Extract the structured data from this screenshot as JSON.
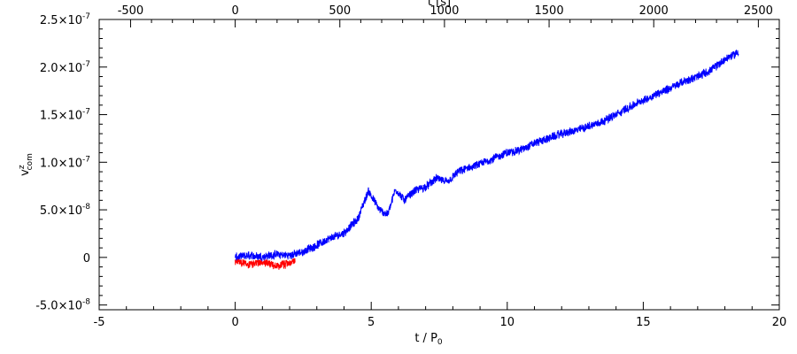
{
  "chart_data": {
    "type": "line",
    "xlabel": "t / P",
    "xlabel_sub": "0",
    "ylabel": "v",
    "ylabel_sup": "z",
    "ylabel_sub": "com",
    "top_axis_label": "t [s]",
    "xlim": [
      -5,
      20
    ],
    "ylim": [
      -5.5e-08,
      2.5e-07
    ],
    "bottom_ticks": [
      "-5",
      "0",
      "5",
      "10",
      "15",
      "20"
    ],
    "bottom_tick_values": [
      -5,
      0,
      5,
      10,
      15,
      20
    ],
    "top_ticks": [
      "-500",
      "0",
      "500",
      "1000",
      "1500",
      "2000",
      "2500"
    ],
    "top_tick_values": [
      -500,
      0,
      500,
      1000,
      1500,
      2000,
      2500
    ],
    "top_axis_seconds_per_unit": 130,
    "y_ticks": [
      {
        "value": -5e-08,
        "mantissa": "-5.0",
        "exp": "-8"
      },
      {
        "value": 0,
        "mantissa": "0",
        "exp": ""
      },
      {
        "value": 5e-08,
        "mantissa": "5.0",
        "exp": "-8"
      },
      {
        "value": 1e-07,
        "mantissa": "1.0",
        "exp": "-7"
      },
      {
        "value": 1.5e-07,
        "mantissa": "1.5",
        "exp": "-7"
      },
      {
        "value": 2e-07,
        "mantissa": "2.0",
        "exp": "-7"
      },
      {
        "value": 2.5e-07,
        "mantissa": "2.5",
        "exp": "-7"
      }
    ],
    "series": [
      {
        "color": "#ff0000",
        "noise": 6e-09,
        "noise_sign": -1,
        "x": [
          0.0,
          0.5,
          1.0,
          1.5,
          2.0,
          2.2
        ],
        "y": [
          0.0,
          -4e-09,
          -1e-09,
          -5e-09,
          -2e-09,
          0.0
        ]
      },
      {
        "color": "#0000ff",
        "noise": 4e-09,
        "noise_sign": 0,
        "x": [
          0.0,
          0.5,
          1.0,
          1.5,
          2.0,
          2.5,
          3.0,
          3.5,
          4.0,
          4.5,
          4.9,
          5.3,
          5.6,
          5.9,
          6.2,
          6.6,
          7.0,
          7.4,
          7.8,
          8.2,
          8.6,
          9.0,
          9.5,
          10.0,
          10.5,
          11.0,
          11.5,
          12.0,
          12.5,
          13.0,
          13.5,
          14.0,
          14.5,
          15.0,
          15.5,
          16.0,
          16.5,
          17.0,
          17.5,
          18.0,
          18.5
        ],
        "y": [
          0.0,
          2e-09,
          1e-09,
          3e-09,
          2e-09,
          6e-09,
          1.3e-08,
          2e-08,
          2.6e-08,
          4e-08,
          7e-08,
          5e-08,
          4.5e-08,
          7.2e-08,
          6e-08,
          7e-08,
          7.4e-08,
          8.3e-08,
          7.9e-08,
          9e-08,
          9.4e-08,
          9.8e-08,
          1.04e-07,
          1.1e-07,
          1.13e-07,
          1.2e-07,
          1.25e-07,
          1.3e-07,
          1.33e-07,
          1.38e-07,
          1.43e-07,
          1.5e-07,
          1.58e-07,
          1.65e-07,
          1.72e-07,
          1.78e-07,
          1.85e-07,
          1.9e-07,
          1.97e-07,
          2.08e-07,
          2.16e-07
        ]
      }
    ]
  }
}
